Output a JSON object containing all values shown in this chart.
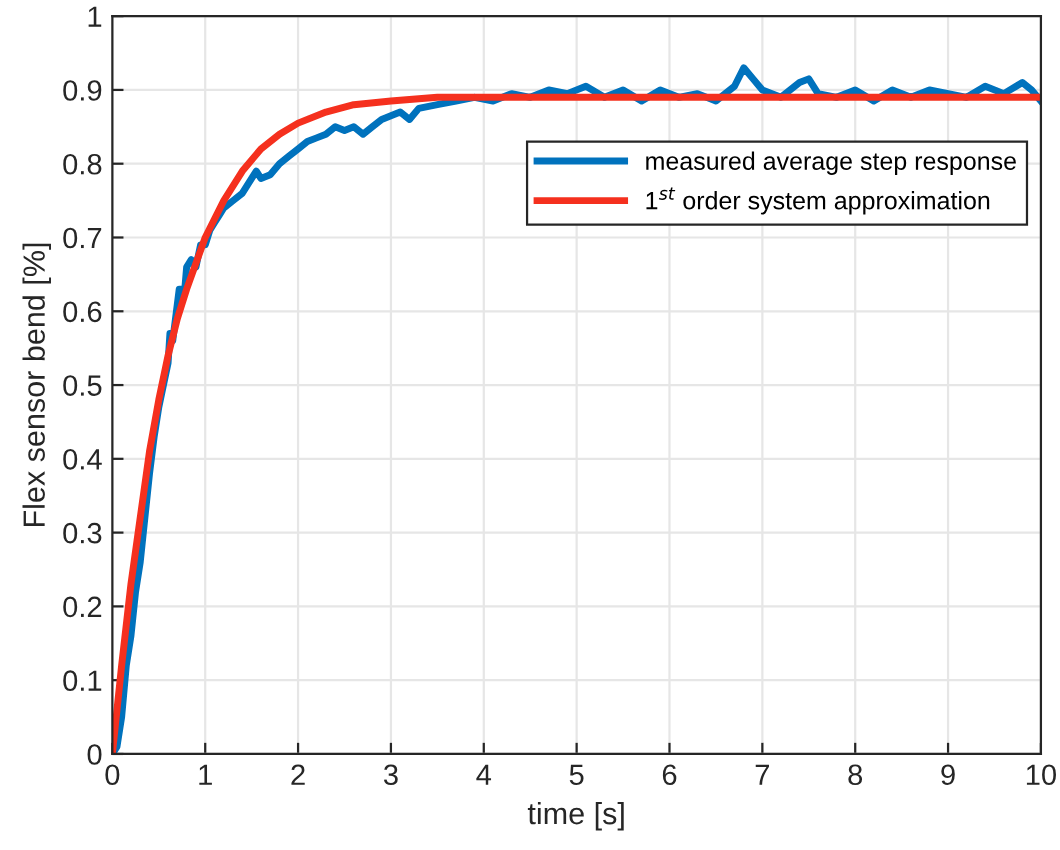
{
  "chart_data": {
    "type": "line",
    "xlabel": "time [s]",
    "ylabel": "Flex sensor bend [%]",
    "xlim": [
      0,
      10
    ],
    "xticks": [
      0,
      1,
      2,
      3,
      4,
      5,
      6,
      7,
      8,
      9,
      10
    ],
    "ylim": [
      0,
      1
    ],
    "yticks": [
      0,
      0.1,
      0.2,
      0.3,
      0.4,
      0.5,
      0.6,
      0.7,
      0.8,
      0.9,
      1
    ],
    "grid": true,
    "legend": "top right",
    "marker": "none",
    "line_style": "solid",
    "series": [
      {
        "name": "measured average step response",
        "color": "#0072bd",
        "x": [
          0,
          0.05,
          0.1,
          0.15,
          0.2,
          0.25,
          0.3,
          0.35,
          0.4,
          0.45,
          0.5,
          0.55,
          0.6,
          0.62,
          0.65,
          0.7,
          0.72,
          0.78,
          0.8,
          0.85,
          0.9,
          0.95,
          1.0,
          1.05,
          1.1,
          1.15,
          1.2,
          1.3,
          1.4,
          1.5,
          1.55,
          1.6,
          1.7,
          1.8,
          1.9,
          2.0,
          2.1,
          2.2,
          2.3,
          2.4,
          2.5,
          2.6,
          2.7,
          2.8,
          2.9,
          3.0,
          3.1,
          3.2,
          3.3,
          3.5,
          3.7,
          3.9,
          4.1,
          4.3,
          4.5,
          4.7,
          4.9,
          5.1,
          5.3,
          5.5,
          5.7,
          5.9,
          6.1,
          6.3,
          6.5,
          6.7,
          6.8,
          6.9,
          7.0,
          7.2,
          7.4,
          7.5,
          7.6,
          7.8,
          8.0,
          8.2,
          8.4,
          8.6,
          8.8,
          9.0,
          9.2,
          9.4,
          9.6,
          9.8,
          9.9,
          10
        ],
        "values": [
          0,
          0.01,
          0.05,
          0.12,
          0.16,
          0.22,
          0.26,
          0.32,
          0.38,
          0.43,
          0.47,
          0.5,
          0.53,
          0.57,
          0.56,
          0.61,
          0.63,
          0.63,
          0.66,
          0.67,
          0.66,
          0.69,
          0.69,
          0.71,
          0.72,
          0.73,
          0.74,
          0.75,
          0.76,
          0.78,
          0.79,
          0.78,
          0.785,
          0.8,
          0.81,
          0.82,
          0.83,
          0.835,
          0.84,
          0.85,
          0.845,
          0.85,
          0.84,
          0.85,
          0.86,
          0.865,
          0.87,
          0.86,
          0.875,
          0.88,
          0.885,
          0.89,
          0.885,
          0.895,
          0.89,
          0.9,
          0.895,
          0.905,
          0.89,
          0.9,
          0.885,
          0.9,
          0.89,
          0.895,
          0.885,
          0.905,
          0.93,
          0.915,
          0.9,
          0.89,
          0.91,
          0.915,
          0.895,
          0.89,
          0.9,
          0.885,
          0.9,
          0.89,
          0.9,
          0.895,
          0.89,
          0.905,
          0.895,
          0.91,
          0.9,
          0.885
        ]
      },
      {
        "name": "1$^{st}$ order system approximation",
        "color": "#f5301e",
        "x": [
          0,
          0.1,
          0.2,
          0.3,
          0.4,
          0.5,
          0.6,
          0.7,
          0.8,
          1.0,
          1.2,
          1.4,
          1.6,
          1.8,
          2.0,
          2.3,
          2.6,
          3.0,
          3.5,
          4.0,
          5.0,
          10.0
        ],
        "values": [
          0,
          0.12,
          0.23,
          0.32,
          0.41,
          0.48,
          0.54,
          0.59,
          0.63,
          0.7,
          0.75,
          0.79,
          0.82,
          0.84,
          0.855,
          0.87,
          0.88,
          0.885,
          0.89,
          0.89,
          0.89,
          0.89
        ]
      }
    ]
  }
}
